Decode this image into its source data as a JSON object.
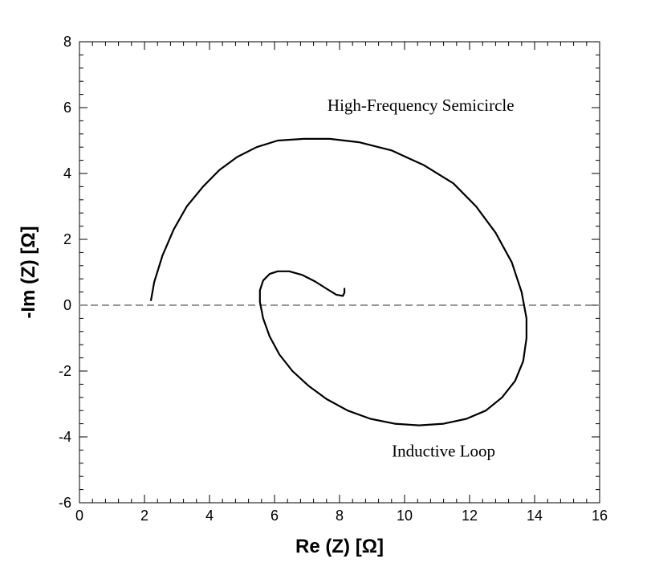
{
  "chart_data": {
    "type": "line",
    "title": "",
    "xlabel": "Re (Z) [Ω]",
    "ylabel": "-Im (Z) [Ω]",
    "xlim": [
      0,
      16
    ],
    "ylim": [
      -6,
      8
    ],
    "x_ticks": [
      0,
      2,
      4,
      6,
      8,
      10,
      12,
      14,
      16
    ],
    "y_ticks": [
      -6,
      -4,
      -2,
      0,
      2,
      4,
      6,
      8
    ],
    "x_tick_labels": [
      "0",
      "2",
      "4",
      "6",
      "8",
      "10",
      "12",
      "14",
      "16"
    ],
    "y_tick_labels": [
      "-6",
      "-4",
      "-2",
      "0",
      "2",
      "4",
      "6",
      "8"
    ],
    "x_minor_step": 0.4,
    "y_minor_step": 0.4,
    "grid": false,
    "legend": "none",
    "reference_line": {
      "y": 0,
      "style": "dashed",
      "color": "#999999"
    },
    "annotations": [
      {
        "text": "High-Frequency Semicircle",
        "x": 10.5,
        "y": 5.9
      },
      {
        "text": "Inductive Loop",
        "x": 11.2,
        "y": -4.6
      }
    ],
    "series": [
      {
        "color": "#000000",
        "x": [
          2.2,
          2.3,
          2.55,
          2.9,
          3.3,
          3.8,
          4.3,
          4.85,
          5.45,
          6.1,
          6.9,
          7.7,
          8.6,
          9.6,
          10.6,
          11.5,
          12.2,
          12.8,
          13.3,
          13.6,
          13.75,
          13.75,
          13.65,
          13.4,
          13.0,
          12.5,
          11.9,
          11.2,
          10.45,
          9.7,
          8.95,
          8.25,
          7.6,
          7.05,
          6.55,
          6.15,
          5.85,
          5.65,
          5.55,
          5.55,
          5.65,
          5.85,
          6.1,
          6.45,
          6.85,
          7.25,
          7.6,
          7.9,
          8.1,
          8.15,
          8.15
        ],
        "y": [
          0.15,
          0.7,
          1.5,
          2.3,
          3.0,
          3.6,
          4.1,
          4.5,
          4.8,
          5.0,
          5.05,
          5.05,
          4.95,
          4.7,
          4.25,
          3.7,
          3.0,
          2.2,
          1.3,
          0.4,
          -0.4,
          -1.0,
          -1.7,
          -2.3,
          -2.8,
          -3.2,
          -3.45,
          -3.6,
          -3.65,
          -3.6,
          -3.45,
          -3.2,
          -2.85,
          -2.45,
          -2.0,
          -1.5,
          -0.95,
          -0.4,
          0.1,
          0.45,
          0.75,
          0.95,
          1.03,
          1.03,
          0.92,
          0.72,
          0.5,
          0.32,
          0.28,
          0.38,
          0.5
        ]
      }
    ]
  }
}
